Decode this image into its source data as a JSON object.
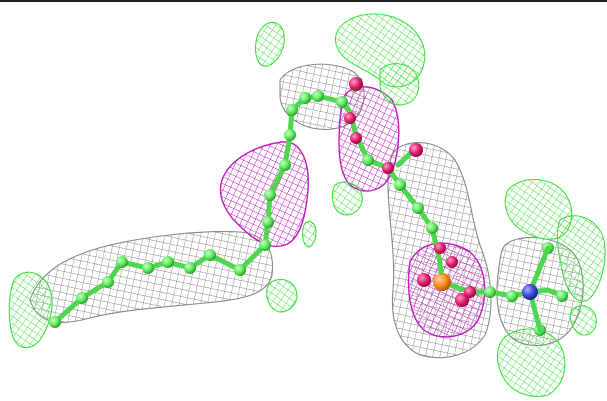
{
  "viewer": {
    "kind": "molecular-density-map",
    "colors": {
      "background": "#ffffff",
      "border": "#222222",
      "grey_mesh": "#8a8a8a",
      "green_mesh": "#3fe33f",
      "magenta_mesh": "#c21ec2",
      "carbon_atom": "#5ee85e",
      "oxygen_atom": "#e0206e",
      "phosphorus_atom": "#ff8c1a",
      "nitrogen_atom": "#3a48d8"
    },
    "meshes": [
      {
        "name": "grey-density-mesh",
        "color_key": "grey_mesh"
      },
      {
        "name": "magenta-density-mesh",
        "color_key": "magenta_mesh"
      },
      {
        "name": "green-density-mesh",
        "color_key": "green_mesh"
      }
    ],
    "atom_types": [
      "carbon",
      "oxygen",
      "phosphorus",
      "nitrogen"
    ]
  }
}
